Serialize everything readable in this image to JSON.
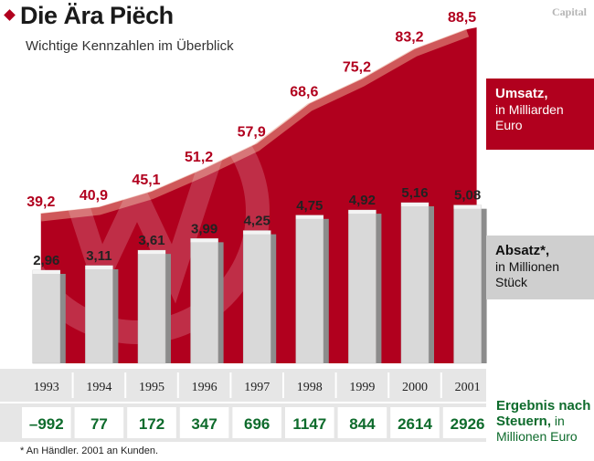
{
  "header": {
    "title": "Die Ära Piëch",
    "subtitle": "Wichtige Kennzahlen im Überblick",
    "brand": "Capital"
  },
  "legend": {
    "umsatz_title": "Umsatz,",
    "umsatz_sub": "in Milliarden Euro",
    "absatz_title": "Absatz*,",
    "absatz_sub": "in Millionen Stück",
    "ergebnis_title": "Ergebnis nach Steuern,",
    "ergebnis_sub": "in Millionen Euro"
  },
  "footnote": "* An Händler. 2001 an Kunden.",
  "colors": {
    "umsatz": "#b1001e",
    "absatz": "#d9d9d9",
    "ergebnis": "#0e6b2c",
    "grid_gray": "#e6e6e6"
  },
  "chart_data": {
    "type": "bar",
    "categories": [
      "1993",
      "1994",
      "1995",
      "1996",
      "1997",
      "1998",
      "1999",
      "2000",
      "2001"
    ],
    "series": [
      {
        "name": "Umsatz, in Milliarden Euro",
        "type": "area",
        "values": [
          39.2,
          40.9,
          45.1,
          51.2,
          57.9,
          68.6,
          75.2,
          83.2,
          88.5
        ],
        "labels": [
          "39,2",
          "40,9",
          "45,1",
          "51,2",
          "57,9",
          "68,6",
          "75,2",
          "83,2",
          "88,5"
        ]
      },
      {
        "name": "Absatz*, in Millionen Stück",
        "type": "bar",
        "values": [
          2.96,
          3.11,
          3.61,
          3.99,
          4.25,
          4.75,
          4.92,
          5.16,
          5.08
        ],
        "labels": [
          "2,96",
          "3,11",
          "3,61",
          "3,99",
          "4,25",
          "4,75",
          "4,92",
          "5,16",
          "5,08"
        ]
      },
      {
        "name": "Ergebnis nach Steuern, in Millionen Euro",
        "type": "table",
        "values": [
          -992,
          77,
          172,
          347,
          696,
          1147,
          844,
          2614,
          2926
        ],
        "labels": [
          "–992",
          "77",
          "172",
          "347",
          "696",
          "1147",
          "844",
          "2614",
          "2926"
        ]
      }
    ]
  }
}
